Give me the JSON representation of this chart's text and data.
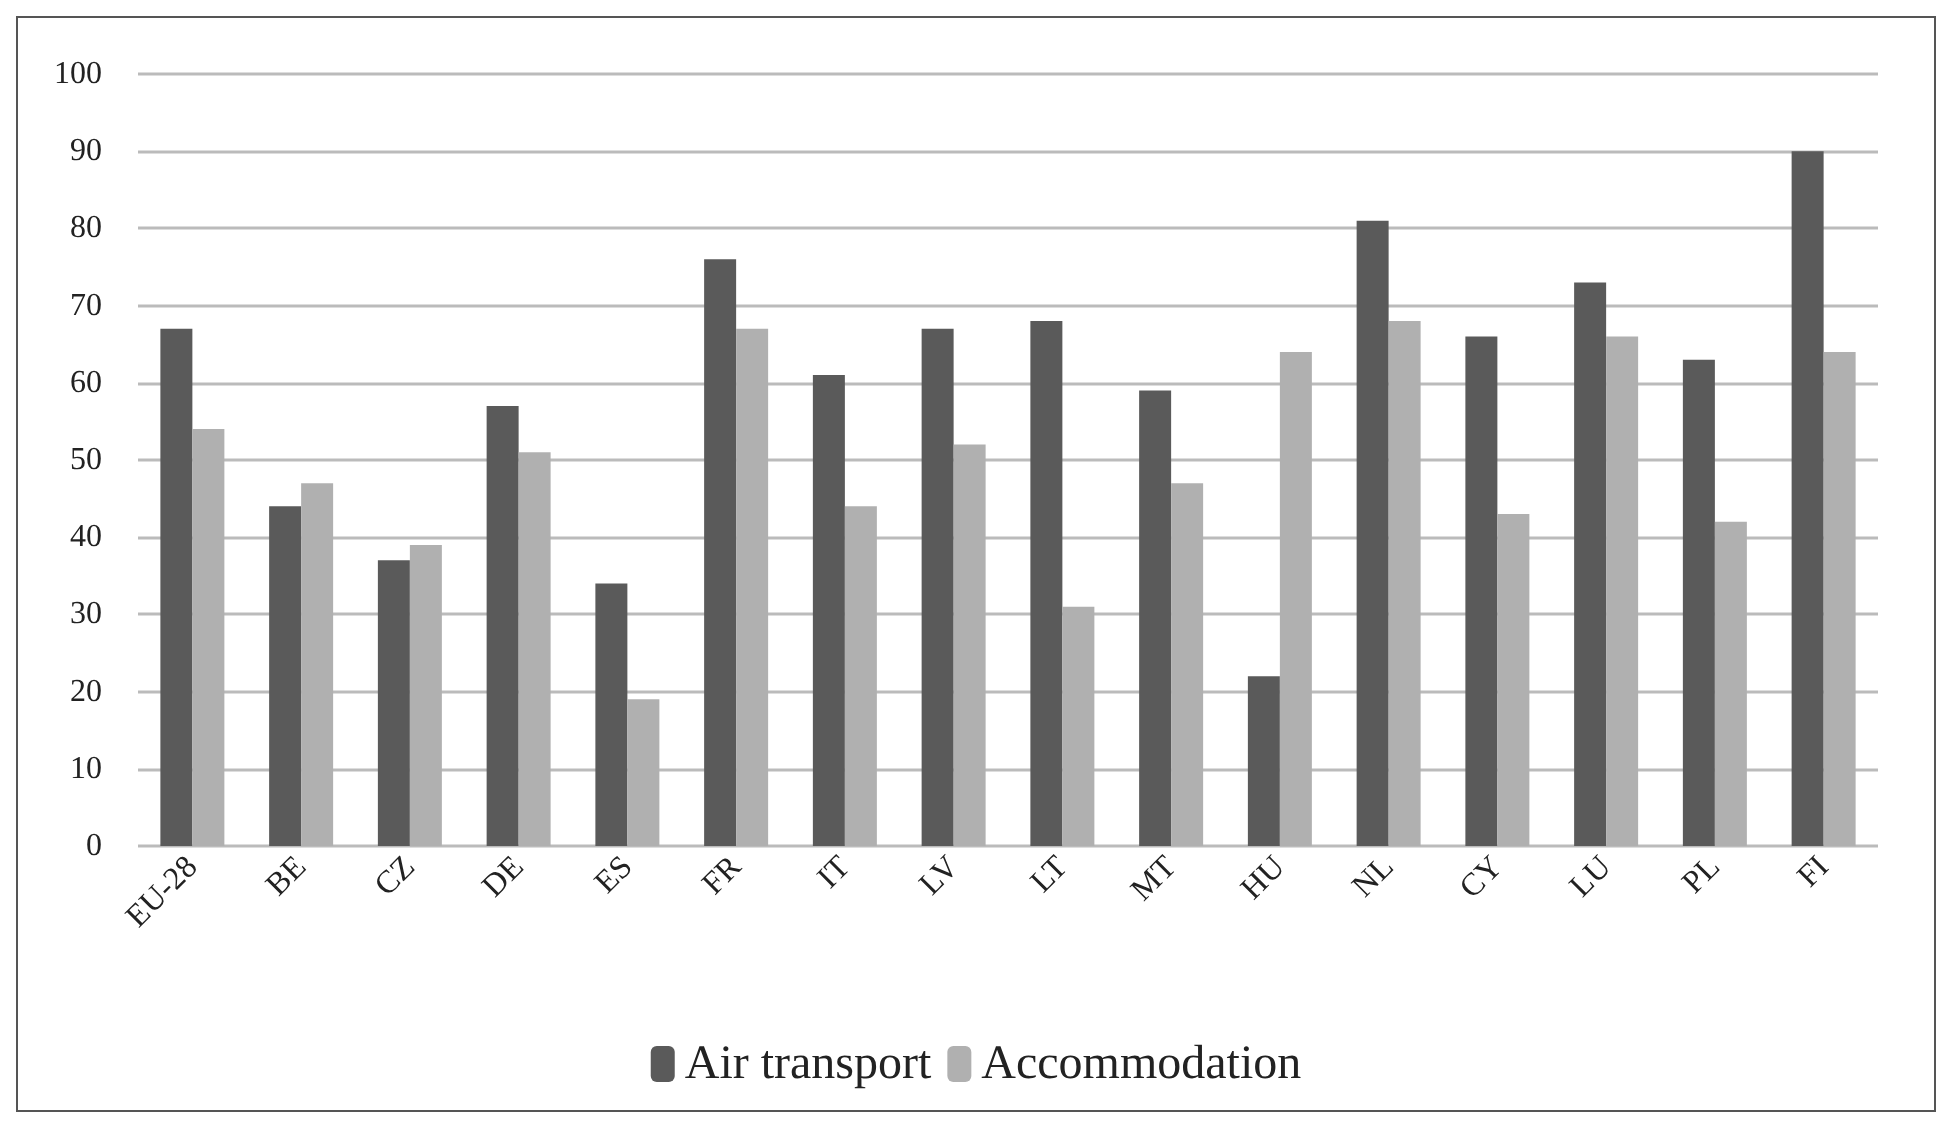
{
  "chart_data": {
    "type": "bar",
    "categories": [
      "EU-28",
      "BE",
      "CZ",
      "DE",
      "ES",
      "FR",
      "IT",
      "LV",
      "LT",
      "MT",
      "HU",
      "NL",
      "CY",
      "LU",
      "PL",
      "FI"
    ],
    "series": [
      {
        "name": "Air transport",
        "color": "#5a5a5a",
        "values": [
          67,
          44,
          37,
          57,
          34,
          76,
          61,
          67,
          68,
          59,
          22,
          81,
          66,
          73,
          63,
          90
        ]
      },
      {
        "name": "Accommodation",
        "color": "#b0b0b0",
        "values": [
          54,
          47,
          39,
          51,
          19,
          67,
          44,
          52,
          31,
          47,
          64,
          68,
          43,
          66,
          42,
          64
        ]
      }
    ],
    "ylim": [
      0,
      100
    ],
    "yticks": [
      0,
      10,
      20,
      30,
      40,
      50,
      60,
      70,
      80,
      90,
      100
    ],
    "grid": "y",
    "legend": "bottom"
  }
}
